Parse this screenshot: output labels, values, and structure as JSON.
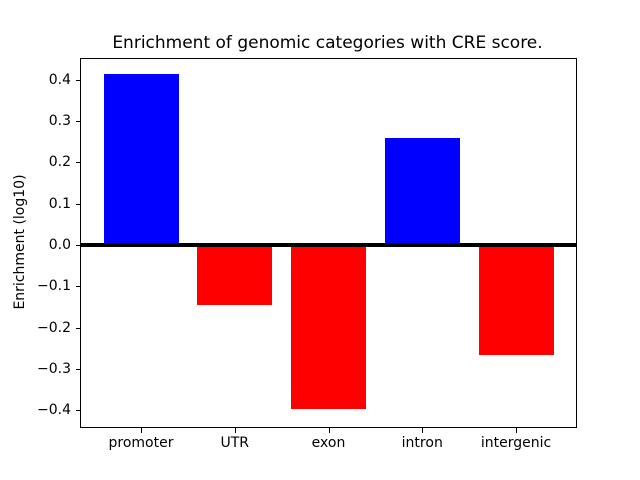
{
  "figure": {
    "background": "#ffffff",
    "axis_color": "#000000"
  },
  "chart_data": {
    "type": "bar",
    "title": "Enrichment of genomic categories with CRE score.",
    "xlabel": "",
    "ylabel": "Enrichment (log10)",
    "categories": [
      "promoter",
      "UTR",
      "exon",
      "intron",
      "intergenic"
    ],
    "values": [
      0.413,
      -0.144,
      -0.397,
      0.258,
      -0.267
    ],
    "bar_colors": [
      "#0000ff",
      "#ff0000",
      "#ff0000",
      "#0000ff",
      "#ff0000"
    ],
    "positive_color": "#0000ff",
    "negative_color": "#ff0000",
    "bar_width_units": 0.8,
    "xlim": [
      -0.64,
      4.64
    ],
    "ylim": [
      -0.44,
      0.45
    ],
    "yticks": [
      0.4,
      0.3,
      0.2,
      0.1,
      0.0,
      -0.1,
      -0.2,
      -0.3,
      -0.4
    ],
    "ytick_labels": [
      "0.4",
      "0.3",
      "0.2",
      "0.1",
      "0.0",
      "−0.1",
      "−0.2",
      "−0.3",
      "−0.4"
    ],
    "zero_line": true,
    "zero_line_color": "#000000",
    "grid": false,
    "legend": null
  }
}
